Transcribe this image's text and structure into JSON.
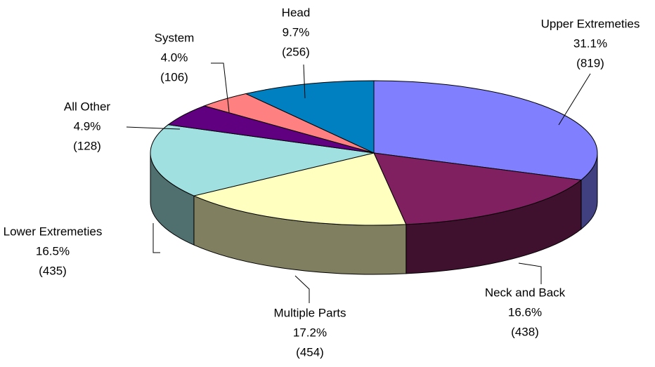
{
  "chart_data": {
    "type": "pie3d",
    "categories": [
      "Upper Extremeties",
      "Neck and Back",
      "Multiple Parts",
      "Lower Extremeties",
      "All Other",
      "System",
      "Head"
    ],
    "values": [
      31.1,
      16.6,
      17.2,
      16.5,
      4.9,
      4.0,
      9.7
    ],
    "value_labels": [
      "31.1%",
      "16.6%",
      "17.2%",
      "16.5%",
      "4.9%",
      "4.0%",
      "9.7%"
    ],
    "counts": [
      819,
      438,
      454,
      435,
      128,
      106,
      256
    ],
    "count_labels": [
      "(819)",
      "(438)",
      "(454)",
      "(435)",
      "(128)",
      "(106)",
      "(256)"
    ],
    "colors": [
      "#8080ff",
      "#802060",
      "#ffffc0",
      "#a0e0e0",
      "#600080",
      "#ff8080",
      "#0080c0"
    ],
    "side_colors": [
      "#404080",
      "#40102f",
      "#808060",
      "#507070",
      "#300040",
      "#804040",
      "#004060"
    ]
  }
}
